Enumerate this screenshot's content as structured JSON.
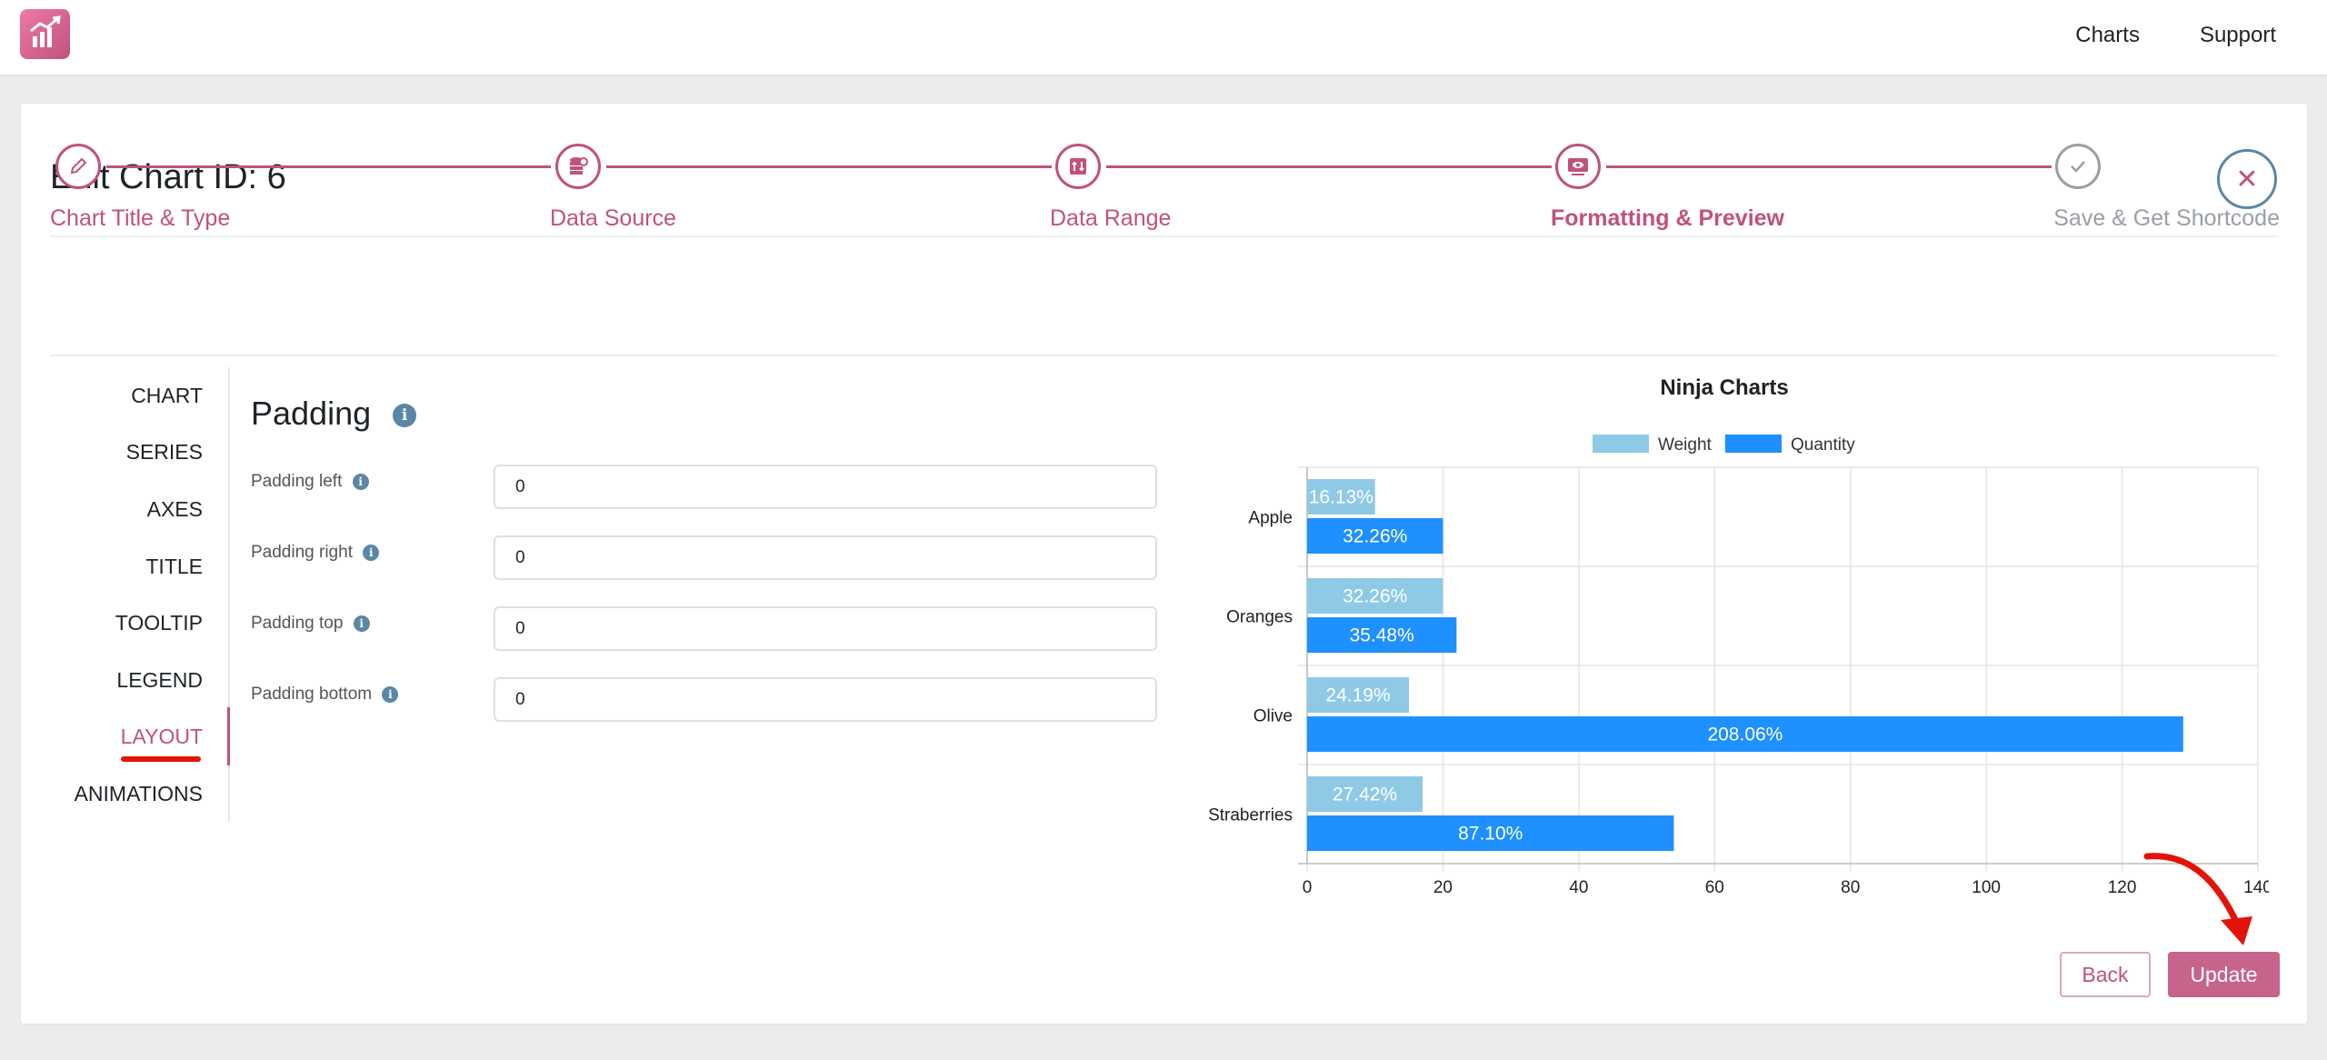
{
  "topnav": {
    "charts": "Charts",
    "support": "Support"
  },
  "page": {
    "title": "Edit Chart ID: 6"
  },
  "steps": [
    {
      "label": "Chart Title & Type",
      "state": "done",
      "icon": "pencil-icon"
    },
    {
      "label": "Data Source",
      "state": "done",
      "icon": "database-icon"
    },
    {
      "label": "Data Range",
      "state": "done",
      "icon": "range-icon"
    },
    {
      "label": "Formatting & Preview",
      "state": "active",
      "icon": "preview-icon"
    },
    {
      "label": "Save & Get Shortcode",
      "state": "pending",
      "icon": "check-icon"
    }
  ],
  "tabs": [
    "CHART",
    "SERIES",
    "AXES",
    "TITLE",
    "TOOLTIP",
    "LEGEND",
    "LAYOUT",
    "ANIMATIONS"
  ],
  "active_tab": "LAYOUT",
  "section": {
    "title": "Padding"
  },
  "fields": [
    {
      "label": "Padding left",
      "value": "0"
    },
    {
      "label": "Padding right",
      "value": "0"
    },
    {
      "label": "Padding top",
      "value": "0"
    },
    {
      "label": "Padding bottom",
      "value": "0"
    }
  ],
  "buttons": {
    "back": "Back",
    "update": "Update"
  },
  "colors": {
    "accent": "#c0527d",
    "weight": "#8ecae6",
    "quantity": "#1e90ff"
  },
  "chart_data": {
    "type": "bar",
    "orientation": "horizontal",
    "title": "Ninja Charts",
    "categories": [
      "Apple",
      "Oranges",
      "Olive",
      "Straberries"
    ],
    "series": [
      {
        "name": "Weight",
        "values": [
          10,
          20,
          15,
          17
        ],
        "labels": [
          "16.13%",
          "32.26%",
          "24.19%",
          "27.42%"
        ]
      },
      {
        "name": "Quantity",
        "values": [
          20,
          22,
          129,
          54
        ],
        "labels": [
          "32.26%",
          "35.48%",
          "208.06%",
          "87.10%"
        ]
      }
    ],
    "xlim": [
      0,
      140
    ],
    "xticks": [
      "0",
      "20",
      "40",
      "60",
      "80",
      "100",
      "120",
      "140"
    ],
    "legend": "top",
    "grid": true
  }
}
